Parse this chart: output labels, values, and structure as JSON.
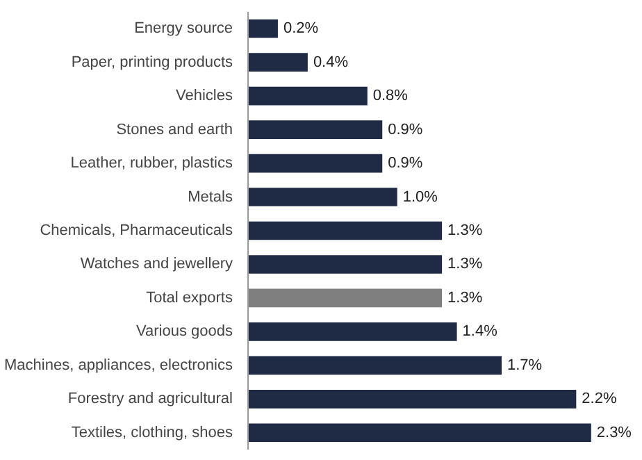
{
  "chart_data": {
    "type": "bar",
    "orientation": "horizontal",
    "categories": [
      "Energy source",
      "Paper, printing products",
      "Vehicles",
      "Stones and earth",
      "Leather, rubber, plastics",
      "Metals",
      "Chemicals, Pharmaceuticals",
      "Watches and jewellery",
      "Total exports",
      "Various goods",
      "Machines, appliances, electronics",
      "Forestry and agricultural",
      "Textiles, clothing, shoes"
    ],
    "values": [
      0.2,
      0.4,
      0.8,
      0.9,
      0.9,
      1.0,
      1.3,
      1.3,
      1.3,
      1.4,
      1.7,
      2.2,
      2.3
    ],
    "value_labels": [
      "0.2%",
      "0.4%",
      "0.8%",
      "0.9%",
      "0.9%",
      "1.0%",
      "1.3%",
      "1.3%",
      "1.3%",
      "1.4%",
      "1.7%",
      "2.2%",
      "2.3%"
    ],
    "colors": [
      "#1f2b45",
      "#1f2b45",
      "#1f2b45",
      "#1f2b45",
      "#1f2b45",
      "#1f2b45",
      "#1f2b45",
      "#1f2b45",
      "#7f7f7f",
      "#1f2b45",
      "#1f2b45",
      "#1f2b45",
      "#1f2b45"
    ],
    "grid": false
  }
}
